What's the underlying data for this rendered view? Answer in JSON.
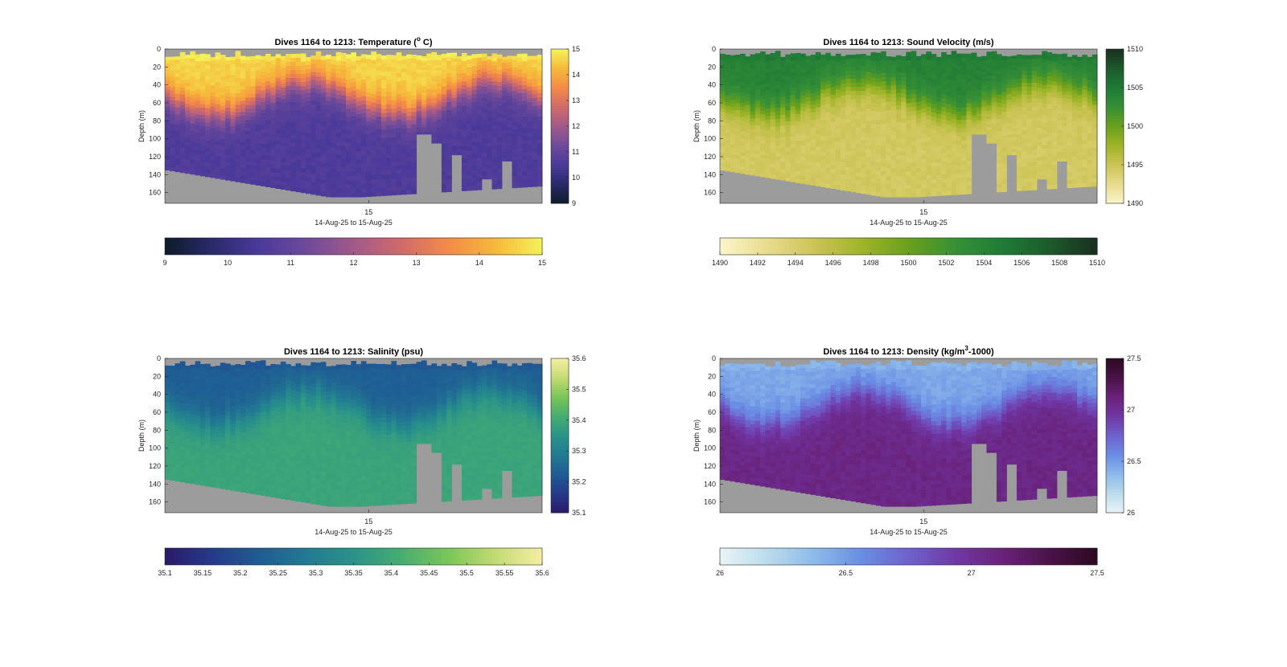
{
  "xtick_label": "15",
  "xlabel": "14-Aug-25 to 15-Aug-25",
  "ylabel": "Depth (m)",
  "chart_data": [
    {
      "type": "heatmap",
      "title_main": "Dives 1164 to 1213: Temperature (",
      "title_sup": "o",
      "title_end": " C)",
      "ylim": [
        0,
        172
      ],
      "yticks": [
        "0",
        "20",
        "40",
        "60",
        "80",
        "100",
        "120",
        "140",
        "160"
      ],
      "clim": [
        9,
        15
      ],
      "colormap": [
        "#0d1b2a",
        "#2a2a6a",
        "#4a3a9a",
        "#6e4a9a",
        "#a05a8a",
        "#d06a6a",
        "#f48a48",
        "#f6b83a",
        "#f4f25a"
      ],
      "v_ticks": [
        "9",
        "10",
        "11",
        "12",
        "13",
        "14",
        "15"
      ],
      "h_ticks": [
        "9",
        "10",
        "11",
        "12",
        "13",
        "14",
        "15"
      ],
      "surface_value": 14.6,
      "deep_value": 10.6,
      "grad_scale": 1.2
    },
    {
      "type": "heatmap",
      "title_main": "Dives 1164 to 1213: Sound Velocity (m/s)",
      "title_sup": "",
      "title_end": "",
      "ylim": [
        0,
        172
      ],
      "yticks": [
        "0",
        "20",
        "40",
        "60",
        "80",
        "100",
        "120",
        "140",
        "160"
      ],
      "clim": [
        1490,
        1510
      ],
      "colormap": [
        "#fbf6cc",
        "#e8dc8e",
        "#ccc456",
        "#9fb428",
        "#6aa01c",
        "#379036",
        "#1f7b36",
        "#1d5a2c",
        "#1a2f20"
      ],
      "v_ticks": [
        "1490",
        "1495",
        "1500",
        "1505",
        "1510"
      ],
      "h_ticks": [
        "1490",
        "1492",
        "1494",
        "1496",
        "1498",
        "1500",
        "1502",
        "1504",
        "1506",
        "1508",
        "1510"
      ],
      "surface_value": 1504.2,
      "deep_value": 1494.5,
      "grad_scale": 3.5
    },
    {
      "type": "heatmap",
      "title_main": "Dives 1164 to 1213: Salinity (psu)",
      "title_sup": "",
      "title_end": "",
      "ylim": [
        0,
        172
      ],
      "yticks": [
        "0",
        "20",
        "40",
        "60",
        "80",
        "100",
        "120",
        "140",
        "160"
      ],
      "clim": [
        35.1,
        35.6
      ],
      "colormap": [
        "#2a1a6a",
        "#26398c",
        "#1f5c94",
        "#217a92",
        "#2a9388",
        "#45ad72",
        "#7ac556",
        "#c2db72",
        "#f6eea2"
      ],
      "v_ticks": [
        "35.1",
        "35.2",
        "35.3",
        "35.4",
        "35.5",
        "35.6"
      ],
      "h_ticks": [
        "35.1",
        "35.15",
        "35.2",
        "35.25",
        "35.3",
        "35.35",
        "35.4",
        "35.45",
        "35.5",
        "35.55",
        "35.6"
      ],
      "surface_value": 35.23,
      "deep_value": 35.39,
      "grad_scale": 0.05
    },
    {
      "type": "heatmap",
      "title_main": "Dives 1164 to 1213: Density (kg/m",
      "title_sup": "3",
      "title_end": "-1000)",
      "ylim": [
        0,
        172
      ],
      "yticks": [
        "0",
        "20",
        "40",
        "60",
        "80",
        "100",
        "120",
        "140",
        "160"
      ],
      "clim": [
        26,
        27.5
      ],
      "colormap": [
        "#e8f4f6",
        "#bcdcec",
        "#8cbaea",
        "#6a8ee4",
        "#6e62cc",
        "#7038a6",
        "#6a227a",
        "#4a1248",
        "#2c0a22"
      ],
      "v_ticks": [
        "26",
        "26.5",
        "27",
        "27.5"
      ],
      "h_ticks": [
        "26",
        "26.5",
        "27",
        "27.5"
      ],
      "surface_value": 26.45,
      "deep_value": 27.08,
      "grad_scale": 0.3
    }
  ]
}
